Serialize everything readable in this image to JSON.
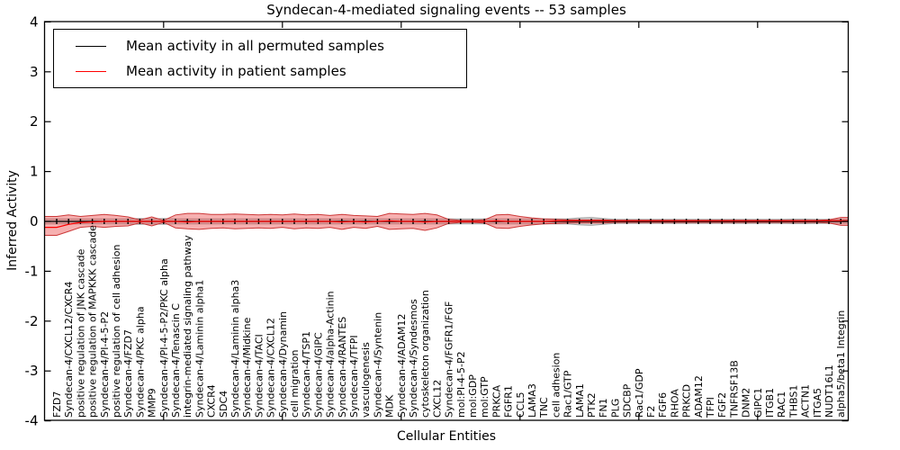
{
  "chart": {
    "title": "Syndecan-4-mediated signaling events -- 53 samples",
    "xlabel": "Cellular Entities",
    "ylabel": "Inferred Activity",
    "legend": [
      {
        "label": "Mean activity in all permuted samples",
        "color": "#000000"
      },
      {
        "label": "Mean activity in patient samples",
        "color": "#ff0000"
      }
    ]
  },
  "chart_data": {
    "type": "line",
    "title": "Syndecan-4-mediated signaling events -- 53 samples",
    "xlabel": "Cellular Entities",
    "ylabel": "Inferred Activity",
    "ylim": [
      -4,
      4
    ],
    "yticks": [
      4,
      3,
      2,
      1,
      0,
      -1,
      -2,
      -3,
      -4
    ],
    "grid": false,
    "legend_position": "upper left",
    "categories": [
      "FZD7",
      "Syndecan-4/CXCL12/CXCR4",
      "positive regulation of JNK cascade",
      "positive regulation of MAPKKK cascade",
      "Syndecan-4/PI-4-5-P2",
      "positive regulation of cell adhesion",
      "Syndecan-4/FZD7",
      "Syndecan-4/PKC alpha",
      "MMP9",
      "Syndecan-4/PI-4-5-P2/PKC alpha",
      "Syndecan-4/Tenascin C",
      "integrin-mediated signaling pathway",
      "Syndecan-4/Laminin alpha1",
      "CXCR4",
      "SDC4",
      "Syndecan-4/Laminin alpha3",
      "Syndecan-4/Midkine",
      "Syndecan-4/TACI",
      "Syndecan-4/CXCL12",
      "Syndecan-4/Dynamin",
      "cell migration",
      "Syndecan-4/TSP1",
      "Syndecan-4/GIPC",
      "Syndecan-4/alpha-Actinin",
      "Syndecan-4/RANTES",
      "Syndecan-4/TFPI",
      "vasculogenesis",
      "Syndecan-4/Syntenin",
      "MDK",
      "Syndecan-4/ADAM12",
      "Syndecan-4/Syndesmos",
      "cytoskeleton organization",
      "CXCL12",
      "Syndecan-4/FGFR1/FGF",
      "mol:PI-4-5-P2",
      "mol:GDP",
      "mol:GTP",
      "PRKCA",
      "FGFR1",
      "CCL5",
      "LAMA3",
      "TNC",
      "cell adhesion",
      "Rac1/GTP",
      "LAMA1",
      "PTK2",
      "FN1",
      "PLG",
      "SDCBP",
      "Rac1/GDP",
      "F2",
      "FGF6",
      "RHOA",
      "PRKCD",
      "ADAM12",
      "TFPI",
      "FGF2",
      "TNFRSF13B",
      "DNM2",
      "GIPC1",
      "ITGB1",
      "RAC1",
      "THBS1",
      "ACTN1",
      "ITGA5",
      "NUDT16L1",
      "alpha5/beta1 Integrin"
    ],
    "series": [
      {
        "name": "Mean activity in all permuted samples",
        "color": "#000000",
        "values": [
          0,
          0,
          0,
          0,
          0,
          0,
          0,
          0,
          0,
          0,
          0,
          0,
          0,
          0,
          0,
          0,
          0,
          0,
          0,
          0,
          0,
          0,
          0,
          0,
          0,
          0,
          0,
          0,
          0,
          0,
          0,
          0,
          0,
          0,
          0,
          0,
          0,
          0,
          0,
          0,
          0,
          0,
          0,
          0,
          0,
          0,
          0,
          0,
          0,
          0,
          0,
          0,
          0,
          0,
          0,
          0,
          0,
          0,
          0,
          0,
          0,
          0,
          0,
          0,
          0,
          0,
          0
        ]
      },
      {
        "name": "Mean activity in patient samples",
        "color": "#ff0000",
        "values": [
          -0.12,
          -0.06,
          -0.02,
          -0.01,
          0,
          0,
          0,
          0,
          0,
          0,
          0,
          -0.01,
          0,
          0,
          0,
          0,
          0,
          0,
          0,
          0,
          0,
          0,
          0,
          0,
          -0.01,
          0,
          -0.01,
          0,
          0.01,
          0,
          0,
          -0.01,
          0,
          0,
          0,
          0,
          0,
          0.01,
          0,
          0,
          0,
          0,
          0.01,
          0.015,
          0.015,
          0.015,
          0.015,
          0.015,
          0.015,
          0.015,
          0.015,
          0.015,
          0.015,
          0.015,
          0.015,
          0.015,
          0.015,
          0.015,
          0.015,
          0.015,
          0.015,
          0.015,
          0.015,
          0.015,
          0.015,
          0.015,
          0.015
        ]
      },
      {
        "name": "patient-band-upper",
        "color": "#e05050",
        "values": [
          0.1,
          0.13,
          0.1,
          0.12,
          0.14,
          0.12,
          0.09,
          0.03,
          0.09,
          0.02,
          0.13,
          0.16,
          0.16,
          0.14,
          0.14,
          0.15,
          0.14,
          0.13,
          0.14,
          0.13,
          0.15,
          0.13,
          0.14,
          0.12,
          0.14,
          0.12,
          0.11,
          0.1,
          0.16,
          0.15,
          0.14,
          0.16,
          0.13,
          0.04,
          0.02,
          0.02,
          0.03,
          0.13,
          0.14,
          0.1,
          0.07,
          0.05,
          0.04,
          0.03,
          0.03,
          0.03,
          0.03,
          0.02,
          0.02,
          0.02,
          0.02,
          0.02,
          0.02,
          0.02,
          0.02,
          0.02,
          0.02,
          0.02,
          0.02,
          0.02,
          0.02,
          0.02,
          0.02,
          0.02,
          0.02,
          0.03,
          0.08
        ]
      },
      {
        "name": "patient-band-lower",
        "color": "#e05050",
        "values": [
          -0.28,
          -0.2,
          -0.12,
          -0.1,
          -0.12,
          -0.1,
          -0.09,
          -0.03,
          -0.09,
          -0.02,
          -0.13,
          -0.15,
          -0.16,
          -0.14,
          -0.13,
          -0.15,
          -0.14,
          -0.13,
          -0.14,
          -0.12,
          -0.15,
          -0.13,
          -0.14,
          -0.12,
          -0.16,
          -0.12,
          -0.14,
          -0.1,
          -0.16,
          -0.15,
          -0.14,
          -0.18,
          -0.13,
          -0.04,
          -0.02,
          -0.02,
          -0.03,
          -0.13,
          -0.14,
          -0.1,
          -0.07,
          -0.05,
          -0.04,
          -0.03,
          -0.03,
          -0.03,
          -0.03,
          -0.02,
          -0.02,
          -0.02,
          -0.02,
          -0.02,
          -0.02,
          -0.02,
          -0.02,
          -0.02,
          -0.02,
          -0.02,
          -0.02,
          -0.02,
          -0.02,
          -0.02,
          -0.02,
          -0.02,
          -0.02,
          -0.03,
          -0.08
        ]
      },
      {
        "name": "permuted-band-upper",
        "color": "#a0a0a0",
        "values": [
          0.05,
          0.05,
          0.05,
          0.05,
          0.05,
          0.05,
          0.05,
          0.06,
          0.05,
          0.06,
          0.05,
          0.05,
          0.05,
          0.05,
          0.05,
          0.05,
          0.05,
          0.05,
          0.05,
          0.05,
          0.05,
          0.05,
          0.05,
          0.05,
          0.05,
          0.05,
          0.05,
          0.05,
          0.05,
          0.05,
          0.05,
          0.05,
          0.05,
          0.05,
          0.05,
          0.05,
          0.05,
          0.05,
          0.05,
          0.05,
          0.05,
          0.05,
          0.05,
          0.05,
          0.07,
          0.08,
          0.06,
          0.04,
          0.04,
          0.04,
          0.04,
          0.04,
          0.04,
          0.04,
          0.04,
          0.04,
          0.04,
          0.04,
          0.04,
          0.04,
          0.04,
          0.04,
          0.045,
          0.045,
          0.04,
          0.04,
          0.04
        ]
      },
      {
        "name": "permuted-band-lower",
        "color": "#a0a0a0",
        "values": [
          -0.05,
          -0.05,
          -0.05,
          -0.05,
          -0.05,
          -0.05,
          -0.05,
          -0.06,
          -0.05,
          -0.06,
          -0.05,
          -0.05,
          -0.05,
          -0.05,
          -0.05,
          -0.05,
          -0.05,
          -0.05,
          -0.05,
          -0.05,
          -0.05,
          -0.05,
          -0.05,
          -0.05,
          -0.05,
          -0.05,
          -0.05,
          -0.05,
          -0.05,
          -0.05,
          -0.05,
          -0.05,
          -0.05,
          -0.05,
          -0.05,
          -0.05,
          -0.05,
          -0.05,
          -0.05,
          -0.05,
          -0.05,
          -0.05,
          -0.05,
          -0.05,
          -0.07,
          -0.08,
          -0.06,
          -0.04,
          -0.04,
          -0.04,
          -0.04,
          -0.04,
          -0.04,
          -0.04,
          -0.04,
          -0.04,
          -0.04,
          -0.04,
          -0.04,
          -0.04,
          -0.04,
          -0.04,
          -0.045,
          -0.045,
          -0.04,
          -0.04,
          -0.04
        ]
      }
    ]
  }
}
